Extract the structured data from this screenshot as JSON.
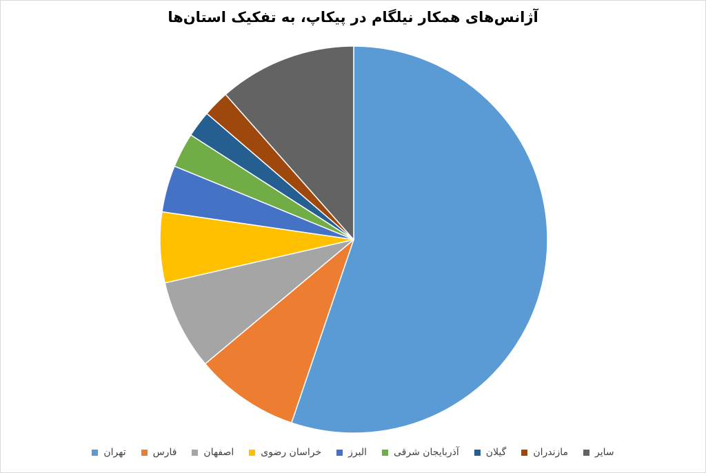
{
  "chart_data": {
    "type": "pie",
    "title": "آژانس‌های همکار نیلگام در پیکاپ، به تفکیک استان‌ها",
    "categories": [
      "تهران",
      "فارس",
      "اصفهان",
      "خراسان رضوی",
      "البرز",
      "آذربایجان شرقی",
      "گیلان",
      "مازندران",
      "سایر"
    ],
    "values": [
      55.2,
      8.7,
      7.5,
      5.9,
      3.9,
      2.9,
      2.2,
      2.2,
      11.5
    ],
    "colors": [
      "#5b9bd5",
      "#ed7d31",
      "#a5a5a5",
      "#ffc000",
      "#4472c4",
      "#70ad47",
      "#255e91",
      "#9e480e",
      "#636363"
    ],
    "legend": "bottom"
  }
}
